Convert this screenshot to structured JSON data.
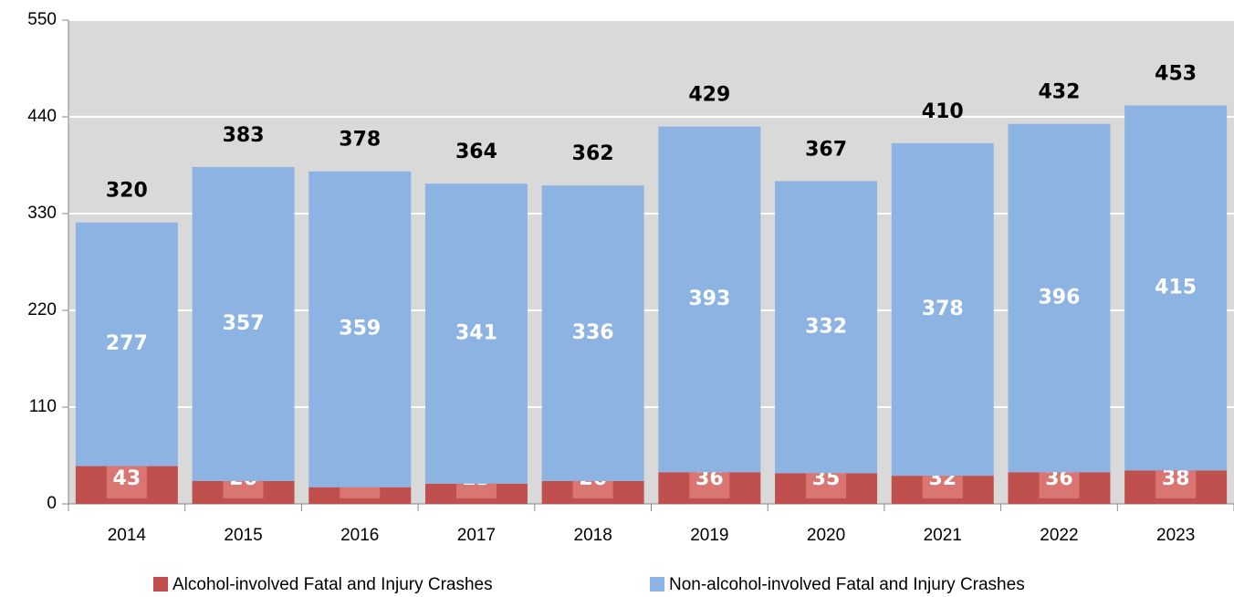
{
  "chart_data": {
    "type": "stacked_bar",
    "categories": [
      "2014",
      "2015",
      "2016",
      "2017",
      "2018",
      "2019",
      "2020",
      "2021",
      "2022",
      "2023"
    ],
    "series": [
      {
        "name": "Alcohol-involved Fatal and Injury Crashes",
        "color": "#c0504d",
        "values": [
          43,
          26,
          19,
          23,
          26,
          36,
          35,
          32,
          36,
          38
        ]
      },
      {
        "name": "Non-alcohol-involved Fatal and Injury Crashes",
        "color": "#8db3e2",
        "values": [
          277,
          357,
          359,
          341,
          336,
          393,
          332,
          378,
          396,
          415
        ]
      }
    ],
    "totals": [
      320,
      383,
      378,
      364,
      362,
      429,
      367,
      410,
      432,
      453
    ],
    "ylim": [
      0,
      550
    ],
    "yticks": [
      0,
      110,
      220,
      330,
      440,
      550
    ],
    "grid": true,
    "legend": "bottom"
  }
}
